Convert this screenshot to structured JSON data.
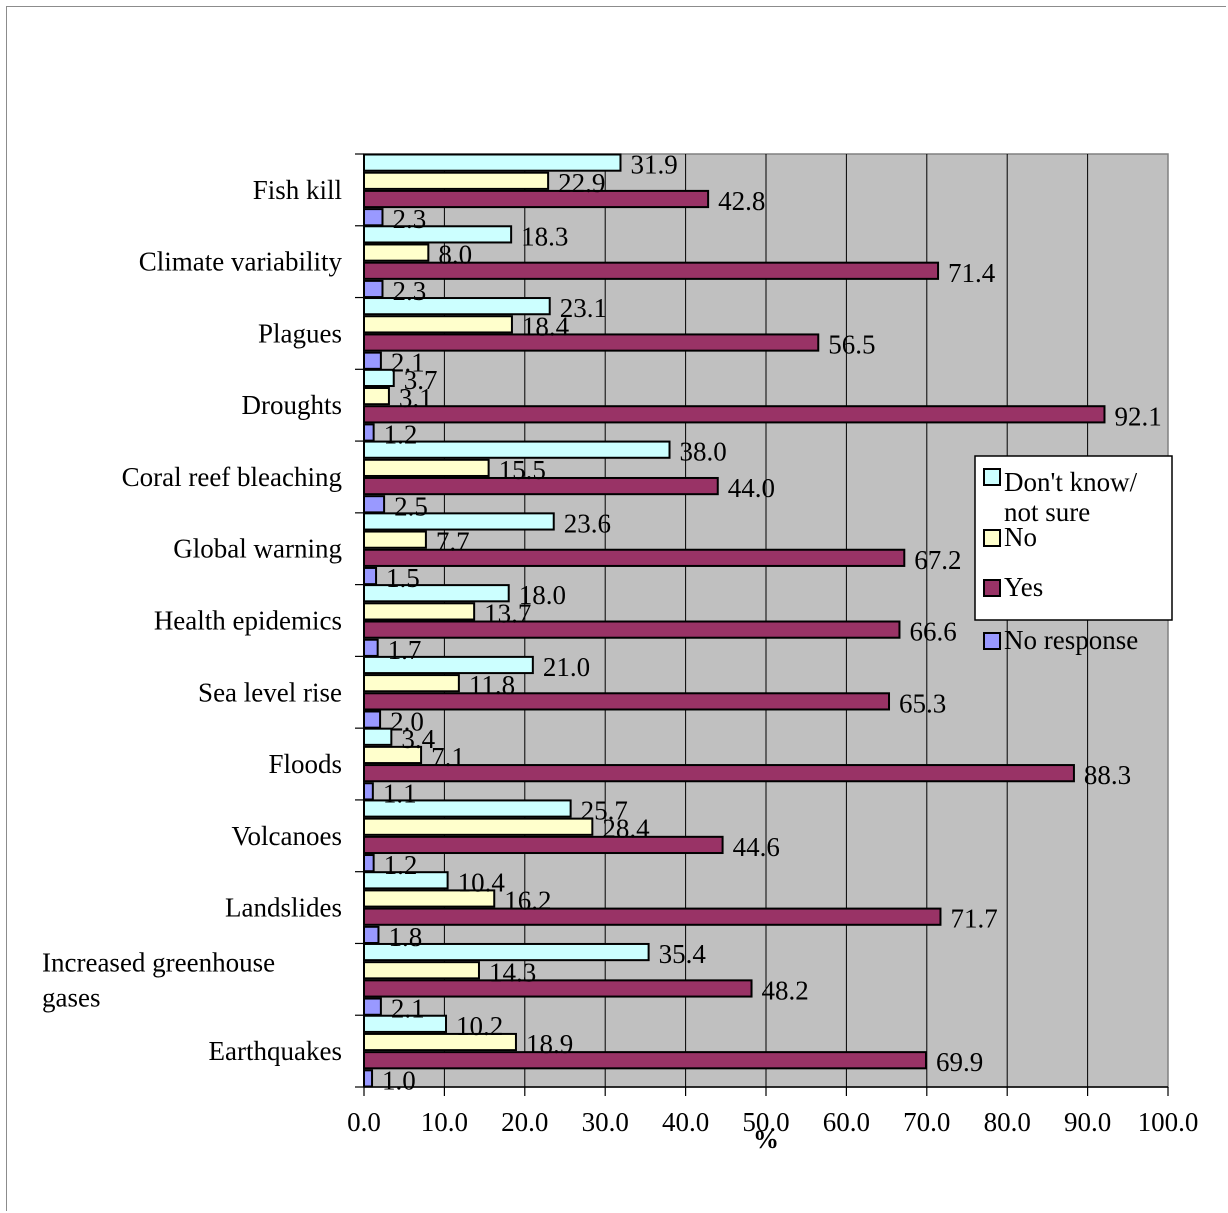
{
  "chart_data": {
    "type": "bar",
    "orientation": "horizontal",
    "xlabel": "%",
    "xlim": [
      0,
      100
    ],
    "x_ticks": [
      "0.0",
      "10.0",
      "20.0",
      "30.0",
      "40.0",
      "50.0",
      "60.0",
      "70.0",
      "80.0",
      "90.0",
      "100.0"
    ],
    "grid": true,
    "legend_position": "right",
    "categories": [
      {
        "label_lines": [
          "Fish kill"
        ]
      },
      {
        "label_lines": [
          "Climate variability"
        ]
      },
      {
        "label_lines": [
          "Plagues"
        ]
      },
      {
        "label_lines": [
          "Droughts"
        ]
      },
      {
        "label_lines": [
          "Coral reef bleaching"
        ]
      },
      {
        "label_lines": [
          "Global warning"
        ]
      },
      {
        "label_lines": [
          "Health epidemics"
        ]
      },
      {
        "label_lines": [
          "Sea level rise"
        ]
      },
      {
        "label_lines": [
          "Floods"
        ]
      },
      {
        "label_lines": [
          "Volcanoes"
        ]
      },
      {
        "label_lines": [
          "Landslides"
        ]
      },
      {
        "label_lines": [
          "Increased greenhouse",
          "gases"
        ]
      },
      {
        "label_lines": [
          "Earthquakes"
        ]
      }
    ],
    "series": [
      {
        "name_lines": [
          "Don't know/",
          "not sure"
        ],
        "color": "#ccffff",
        "values": [
          31.9,
          18.3,
          23.1,
          3.7,
          38.0,
          23.6,
          18.0,
          21.0,
          3.4,
          25.7,
          10.4,
          35.4,
          10.2
        ],
        "labels": [
          "31.9",
          "18.3",
          "23.1",
          "3.7",
          "38.0",
          "23.6",
          "18.0",
          "21.0",
          "3.4",
          "25.7",
          "10.4",
          "35.4",
          "10.2"
        ]
      },
      {
        "name_lines": [
          "No"
        ],
        "color": "#ffffcc",
        "values": [
          22.9,
          8.0,
          18.4,
          3.1,
          15.5,
          7.7,
          13.7,
          11.8,
          7.1,
          28.4,
          16.2,
          14.3,
          18.9
        ],
        "labels": [
          "22.9",
          "8.0",
          "18.4",
          "3.1",
          "15.5",
          "7.7",
          "13.7",
          "11.8",
          "7.1",
          "28.4",
          "16.2",
          "14.3",
          "18.9"
        ]
      },
      {
        "name_lines": [
          "Yes"
        ],
        "color": "#993366",
        "values": [
          42.8,
          71.4,
          56.5,
          92.1,
          44.0,
          67.2,
          66.6,
          65.3,
          88.3,
          44.6,
          71.7,
          48.2,
          69.9
        ],
        "labels": [
          "42.8",
          "71.4",
          "56.5",
          "92.1",
          "44.0",
          "67.2",
          "66.6",
          "65.3",
          "88.3",
          "44.6",
          "71.7",
          "48.2",
          "69.9"
        ]
      },
      {
        "name_lines": [
          "No response"
        ],
        "color": "#9999ff",
        "values": [
          2.3,
          2.3,
          2.1,
          1.2,
          2.5,
          1.5,
          1.7,
          2.0,
          1.1,
          1.2,
          1.8,
          2.1,
          1.0
        ],
        "labels": [
          "2.3",
          "2.3",
          "2.1",
          "1.2",
          "2.5",
          "1.5",
          "1.7",
          "2.0",
          "1.1",
          "1.2",
          "1.8",
          "2.1",
          "1.0"
        ]
      }
    ],
    "colors": {
      "plot_background": "#c0c0c0",
      "gridline": "#000000",
      "bar_border": "#000000"
    }
  }
}
